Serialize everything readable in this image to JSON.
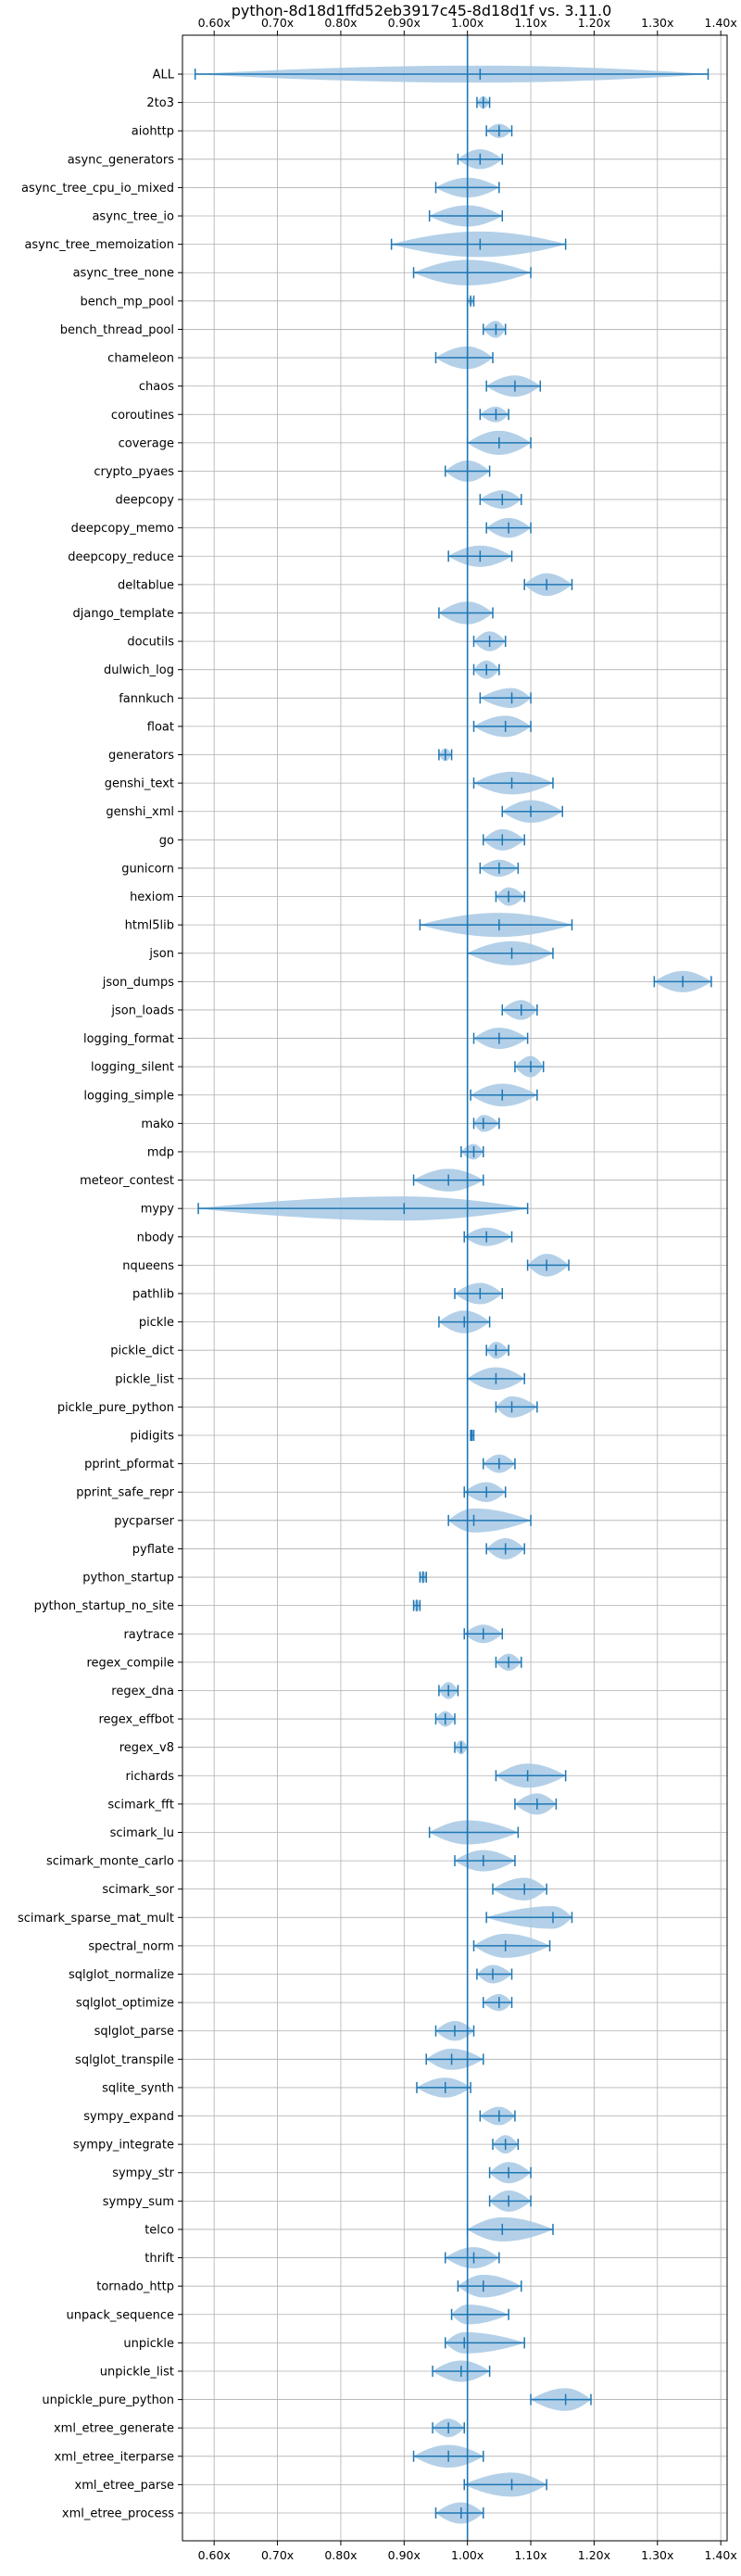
{
  "chart_data": {
    "type": "violin",
    "orientation": "horizontal",
    "title": "python-8d18d1ffd52eb3917c45-8d18d1f vs. 3.11.0",
    "xlabel": "",
    "ylabel": "",
    "xlim": [
      0.55,
      1.41
    ],
    "xticks": [
      0.6,
      0.7,
      0.8,
      0.9,
      1.0,
      1.1,
      1.2,
      1.3,
      1.4
    ],
    "xtick_labels": [
      "0.60x",
      "0.70x",
      "0.80x",
      "0.90x",
      "1.00x",
      "1.10x",
      "1.20x",
      "1.30x",
      "1.40x"
    ],
    "xtick_positions": [
      "top",
      "bottom"
    ],
    "reference_line": 1.0,
    "grid": true,
    "color": "#1f77b4",
    "violin_fill": "#a6c8e4",
    "categories": [
      "ALL",
      "2to3",
      "aiohttp",
      "async_generators",
      "async_tree_cpu_io_mixed",
      "async_tree_io",
      "async_tree_memoization",
      "async_tree_none",
      "bench_mp_pool",
      "bench_thread_pool",
      "chameleon",
      "chaos",
      "coroutines",
      "coverage",
      "crypto_pyaes",
      "deepcopy",
      "deepcopy_memo",
      "deepcopy_reduce",
      "deltablue",
      "django_template",
      "docutils",
      "dulwich_log",
      "fannkuch",
      "float",
      "generators",
      "genshi_text",
      "genshi_xml",
      "go",
      "gunicorn",
      "hexiom",
      "html5lib",
      "json",
      "json_dumps",
      "json_loads",
      "logging_format",
      "logging_silent",
      "logging_simple",
      "mako",
      "mdp",
      "meteor_contest",
      "mypy",
      "nbody",
      "nqueens",
      "pathlib",
      "pickle",
      "pickle_dict",
      "pickle_list",
      "pickle_pure_python",
      "pidigits",
      "pprint_pformat",
      "pprint_safe_repr",
      "pycparser",
      "pyflate",
      "python_startup",
      "python_startup_no_site",
      "raytrace",
      "regex_compile",
      "regex_dna",
      "regex_effbot",
      "regex_v8",
      "richards",
      "scimark_fft",
      "scimark_lu",
      "scimark_monte_carlo",
      "scimark_sor",
      "scimark_sparse_mat_mult",
      "spectral_norm",
      "sqlglot_normalize",
      "sqlglot_optimize",
      "sqlglot_parse",
      "sqlglot_transpile",
      "sqlite_synth",
      "sympy_expand",
      "sympy_integrate",
      "sympy_str",
      "sympy_sum",
      "telco",
      "thrift",
      "tornado_http",
      "unpack_sequence",
      "unpickle",
      "unpickle_list",
      "unpickle_pure_python",
      "xml_etree_generate",
      "xml_etree_iterparse",
      "xml_etree_parse",
      "xml_etree_process"
    ],
    "series": [
      {
        "min": 0.57,
        "max": 1.38,
        "median": 1.02,
        "width": 0.6
      },
      {
        "min": 1.015,
        "max": 1.035,
        "median": 1.025,
        "width": 0.45
      },
      {
        "min": 1.03,
        "max": 1.07,
        "median": 1.05,
        "width": 0.5
      },
      {
        "min": 0.985,
        "max": 1.055,
        "median": 1.02,
        "width": 0.7
      },
      {
        "min": 0.95,
        "max": 1.05,
        "median": 1.0,
        "width": 0.7
      },
      {
        "min": 0.94,
        "max": 1.055,
        "median": 1.0,
        "width": 0.75
      },
      {
        "min": 0.88,
        "max": 1.155,
        "median": 1.02,
        "width": 0.9
      },
      {
        "min": 0.915,
        "max": 1.1,
        "median": 1.0,
        "width": 0.9
      },
      {
        "min": 1.0,
        "max": 1.01,
        "median": 1.005,
        "width": 0.3
      },
      {
        "min": 1.025,
        "max": 1.06,
        "median": 1.045,
        "width": 0.6
      },
      {
        "min": 0.95,
        "max": 1.04,
        "median": 1.0,
        "width": 0.8
      },
      {
        "min": 1.03,
        "max": 1.115,
        "median": 1.075,
        "width": 0.75
      },
      {
        "min": 1.02,
        "max": 1.065,
        "median": 1.045,
        "width": 0.55
      },
      {
        "min": 1.0,
        "max": 1.1,
        "median": 1.05,
        "width": 0.85
      },
      {
        "min": 0.965,
        "max": 1.035,
        "median": 1.0,
        "width": 0.75
      },
      {
        "min": 1.02,
        "max": 1.085,
        "median": 1.055,
        "width": 0.65
      },
      {
        "min": 1.03,
        "max": 1.1,
        "median": 1.065,
        "width": 0.7
      },
      {
        "min": 0.97,
        "max": 1.07,
        "median": 1.02,
        "width": 0.75
      },
      {
        "min": 1.09,
        "max": 1.165,
        "median": 1.125,
        "width": 0.8
      },
      {
        "min": 0.955,
        "max": 1.04,
        "median": 1.0,
        "width": 0.8
      },
      {
        "min": 1.01,
        "max": 1.06,
        "median": 1.035,
        "width": 0.7
      },
      {
        "min": 1.01,
        "max": 1.05,
        "median": 1.03,
        "width": 0.65
      },
      {
        "min": 1.02,
        "max": 1.1,
        "median": 1.07,
        "width": 0.7
      },
      {
        "min": 1.01,
        "max": 1.1,
        "median": 1.06,
        "width": 0.75
      },
      {
        "min": 0.955,
        "max": 0.975,
        "median": 0.965,
        "width": 0.45
      },
      {
        "min": 1.01,
        "max": 1.135,
        "median": 1.07,
        "width": 0.8
      },
      {
        "min": 1.055,
        "max": 1.15,
        "median": 1.1,
        "width": 0.8
      },
      {
        "min": 1.025,
        "max": 1.09,
        "median": 1.055,
        "width": 0.75
      },
      {
        "min": 1.02,
        "max": 1.08,
        "median": 1.05,
        "width": 0.6
      },
      {
        "min": 1.045,
        "max": 1.09,
        "median": 1.065,
        "width": 0.65
      },
      {
        "min": 0.925,
        "max": 1.165,
        "median": 1.05,
        "width": 0.85
      },
      {
        "min": 1.0,
        "max": 1.135,
        "median": 1.07,
        "width": 0.85
      },
      {
        "min": 1.295,
        "max": 1.385,
        "median": 1.34,
        "width": 0.75
      },
      {
        "min": 1.055,
        "max": 1.11,
        "median": 1.085,
        "width": 0.7
      },
      {
        "min": 1.01,
        "max": 1.095,
        "median": 1.05,
        "width": 0.75
      },
      {
        "min": 1.075,
        "max": 1.12,
        "median": 1.1,
        "width": 0.75
      },
      {
        "min": 1.005,
        "max": 1.11,
        "median": 1.055,
        "width": 0.8
      },
      {
        "min": 1.01,
        "max": 1.05,
        "median": 1.025,
        "width": 0.6
      },
      {
        "min": 0.99,
        "max": 1.025,
        "median": 1.01,
        "width": 0.55
      },
      {
        "min": 0.915,
        "max": 1.025,
        "median": 0.97,
        "width": 0.8
      },
      {
        "min": 0.575,
        "max": 1.095,
        "median": 0.9,
        "width": 0.85
      },
      {
        "min": 0.995,
        "max": 1.07,
        "median": 1.03,
        "width": 0.65
      },
      {
        "min": 1.095,
        "max": 1.16,
        "median": 1.125,
        "width": 0.8
      },
      {
        "min": 0.98,
        "max": 1.055,
        "median": 1.02,
        "width": 0.75
      },
      {
        "min": 0.955,
        "max": 1.035,
        "median": 0.995,
        "width": 0.8
      },
      {
        "min": 1.03,
        "max": 1.065,
        "median": 1.045,
        "width": 0.6
      },
      {
        "min": 1.0,
        "max": 1.09,
        "median": 1.045,
        "width": 0.8
      },
      {
        "min": 1.045,
        "max": 1.11,
        "median": 1.07,
        "width": 0.75
      },
      {
        "min": 1.005,
        "max": 1.01,
        "median": 1.007,
        "width": 0.45
      },
      {
        "min": 1.025,
        "max": 1.075,
        "median": 1.05,
        "width": 0.65
      },
      {
        "min": 0.995,
        "max": 1.06,
        "median": 1.03,
        "width": 0.7
      },
      {
        "min": 0.97,
        "max": 1.1,
        "median": 1.01,
        "width": 0.85
      },
      {
        "min": 1.03,
        "max": 1.09,
        "median": 1.06,
        "width": 0.75
      },
      {
        "min": 0.925,
        "max": 0.935,
        "median": 0.93,
        "width": 0.45
      },
      {
        "min": 0.915,
        "max": 0.925,
        "median": 0.92,
        "width": 0.45
      },
      {
        "min": 0.995,
        "max": 1.055,
        "median": 1.025,
        "width": 0.65
      },
      {
        "min": 1.045,
        "max": 1.085,
        "median": 1.065,
        "width": 0.6
      },
      {
        "min": 0.955,
        "max": 0.985,
        "median": 0.97,
        "width": 0.6
      },
      {
        "min": 0.95,
        "max": 0.98,
        "median": 0.965,
        "width": 0.55
      },
      {
        "min": 0.98,
        "max": 1.0,
        "median": 0.99,
        "width": 0.5
      },
      {
        "min": 1.045,
        "max": 1.155,
        "median": 1.095,
        "width": 0.85
      },
      {
        "min": 1.075,
        "max": 1.14,
        "median": 1.11,
        "width": 0.75
      },
      {
        "min": 0.94,
        "max": 1.08,
        "median": 1.0,
        "width": 0.85
      },
      {
        "min": 0.98,
        "max": 1.075,
        "median": 1.025,
        "width": 0.75
      },
      {
        "min": 1.04,
        "max": 1.125,
        "median": 1.09,
        "width": 0.8
      },
      {
        "min": 1.03,
        "max": 1.165,
        "median": 1.135,
        "width": 0.8
      },
      {
        "min": 1.01,
        "max": 1.13,
        "median": 1.06,
        "width": 0.85
      },
      {
        "min": 1.015,
        "max": 1.07,
        "median": 1.04,
        "width": 0.65
      },
      {
        "min": 1.025,
        "max": 1.07,
        "median": 1.05,
        "width": 0.6
      },
      {
        "min": 0.95,
        "max": 1.01,
        "median": 0.98,
        "width": 0.7
      },
      {
        "min": 0.935,
        "max": 1.025,
        "median": 0.975,
        "width": 0.75
      },
      {
        "min": 0.92,
        "max": 1.005,
        "median": 0.965,
        "width": 0.7
      },
      {
        "min": 1.02,
        "max": 1.075,
        "median": 1.05,
        "width": 0.65
      },
      {
        "min": 1.04,
        "max": 1.08,
        "median": 1.06,
        "width": 0.65
      },
      {
        "min": 1.035,
        "max": 1.1,
        "median": 1.065,
        "width": 0.75
      },
      {
        "min": 1.035,
        "max": 1.1,
        "median": 1.065,
        "width": 0.75
      },
      {
        "min": 1.0,
        "max": 1.135,
        "median": 1.055,
        "width": 0.85
      },
      {
        "min": 0.965,
        "max": 1.05,
        "median": 1.01,
        "width": 0.75
      },
      {
        "min": 0.985,
        "max": 1.085,
        "median": 1.025,
        "width": 0.8
      },
      {
        "min": 0.975,
        "max": 1.065,
        "median": 1.0,
        "width": 0.7
      },
      {
        "min": 0.965,
        "max": 1.09,
        "median": 0.995,
        "width": 0.75
      },
      {
        "min": 0.945,
        "max": 1.035,
        "median": 0.99,
        "width": 0.75
      },
      {
        "min": 1.1,
        "max": 1.195,
        "median": 1.155,
        "width": 0.8
      },
      {
        "min": 0.945,
        "max": 0.995,
        "median": 0.97,
        "width": 0.65
      },
      {
        "min": 0.915,
        "max": 1.025,
        "median": 0.97,
        "width": 0.8
      },
      {
        "min": 0.995,
        "max": 1.125,
        "median": 1.07,
        "width": 0.85
      },
      {
        "min": 0.95,
        "max": 1.025,
        "median": 0.99,
        "width": 0.75
      }
    ]
  }
}
